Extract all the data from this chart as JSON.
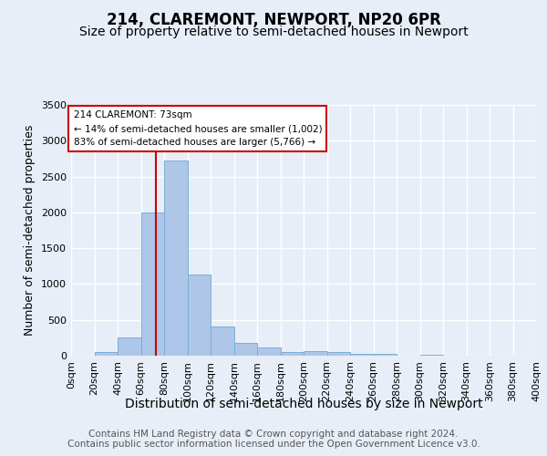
{
  "title": "214, CLAREMONT, NEWPORT, NP20 6PR",
  "subtitle": "Size of property relative to semi-detached houses in Newport",
  "xlabel": "Distribution of semi-detached houses by size in Newport",
  "ylabel": "Number of semi-detached properties",
  "bins": [
    0,
    20,
    40,
    60,
    80,
    100,
    120,
    140,
    160,
    180,
    200,
    220,
    240,
    260,
    280,
    300,
    320,
    340,
    360,
    380,
    400
  ],
  "values": [
    0,
    50,
    260,
    2000,
    2720,
    1130,
    410,
    175,
    110,
    55,
    60,
    55,
    30,
    20,
    5,
    10,
    0,
    0,
    0,
    0
  ],
  "bar_color": "#aec6e8",
  "bar_edge_color": "#7aafd4",
  "bg_color": "#e8eef8",
  "grid_color": "#ffffff",
  "property_line_x": 73,
  "property_line_color": "#cc0000",
  "annotation_text": "214 CLAREMONT: 73sqm\n← 14% of semi-detached houses are smaller (1,002)\n83% of semi-detached houses are larger (5,766) →",
  "annotation_box_color": "#ffffff",
  "annotation_box_edge": "#cc0000",
  "footer_text": "Contains HM Land Registry data © Crown copyright and database right 2024.\nContains public sector information licensed under the Open Government Licence v3.0.",
  "ylim": [
    0,
    3500
  ],
  "title_fontsize": 12,
  "subtitle_fontsize": 10,
  "xlabel_fontsize": 10,
  "ylabel_fontsize": 9,
  "tick_fontsize": 8,
  "footer_fontsize": 7.5
}
